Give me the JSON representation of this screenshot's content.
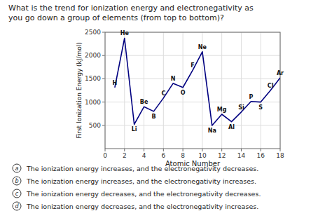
{
  "chart_data": {
    "type": "line",
    "title": "What is the trend for ionization energy and electronegativity  as",
    "subtitle": "you go down a  group of elements (from top to bottom)?",
    "x_label": "Atomic Number",
    "y_label": "First Ionization Energy (kJ/mol)",
    "x": [
      1,
      2,
      3,
      4,
      5,
      6,
      7,
      8,
      9,
      10,
      11,
      12,
      13,
      14,
      15,
      16,
      17,
      18
    ],
    "values": [
      1312,
      2372,
      520,
      899,
      800,
      1086,
      1402,
      1314,
      1681,
      2081,
      496,
      738,
      577,
      786,
      1012,
      1000,
      1251,
      1521
    ],
    "point_labels": [
      "H",
      "He",
      "Li",
      "Be",
      "B",
      "C",
      "N",
      "O",
      "F",
      "Ne",
      "Na",
      "Mg",
      "Al",
      "Si",
      "P",
      "S",
      "Cl",
      "Ar"
    ],
    "xlim": [
      0,
      18
    ],
    "ylim": [
      0,
      2500
    ],
    "xticks": [
      0,
      2,
      4,
      6,
      8,
      10,
      12,
      14,
      16,
      18
    ],
    "yticks": [
      500,
      1000,
      1500,
      2000,
      2500
    ],
    "grid": true,
    "color": "#000080",
    "annotations": [
      {
        "label": "a",
        "text": "The ionization energy increases, and the electronegativity decreases."
      },
      {
        "label": "b",
        "text": "The ionization energy increases, and the electronegativity increases."
      },
      {
        "label": "c",
        "text": "The ionization energy decreases, and the electronegativity decreases."
      },
      {
        "label": "d",
        "text": "The ionization energy decreases, and the electronegativity increases."
      }
    ]
  }
}
